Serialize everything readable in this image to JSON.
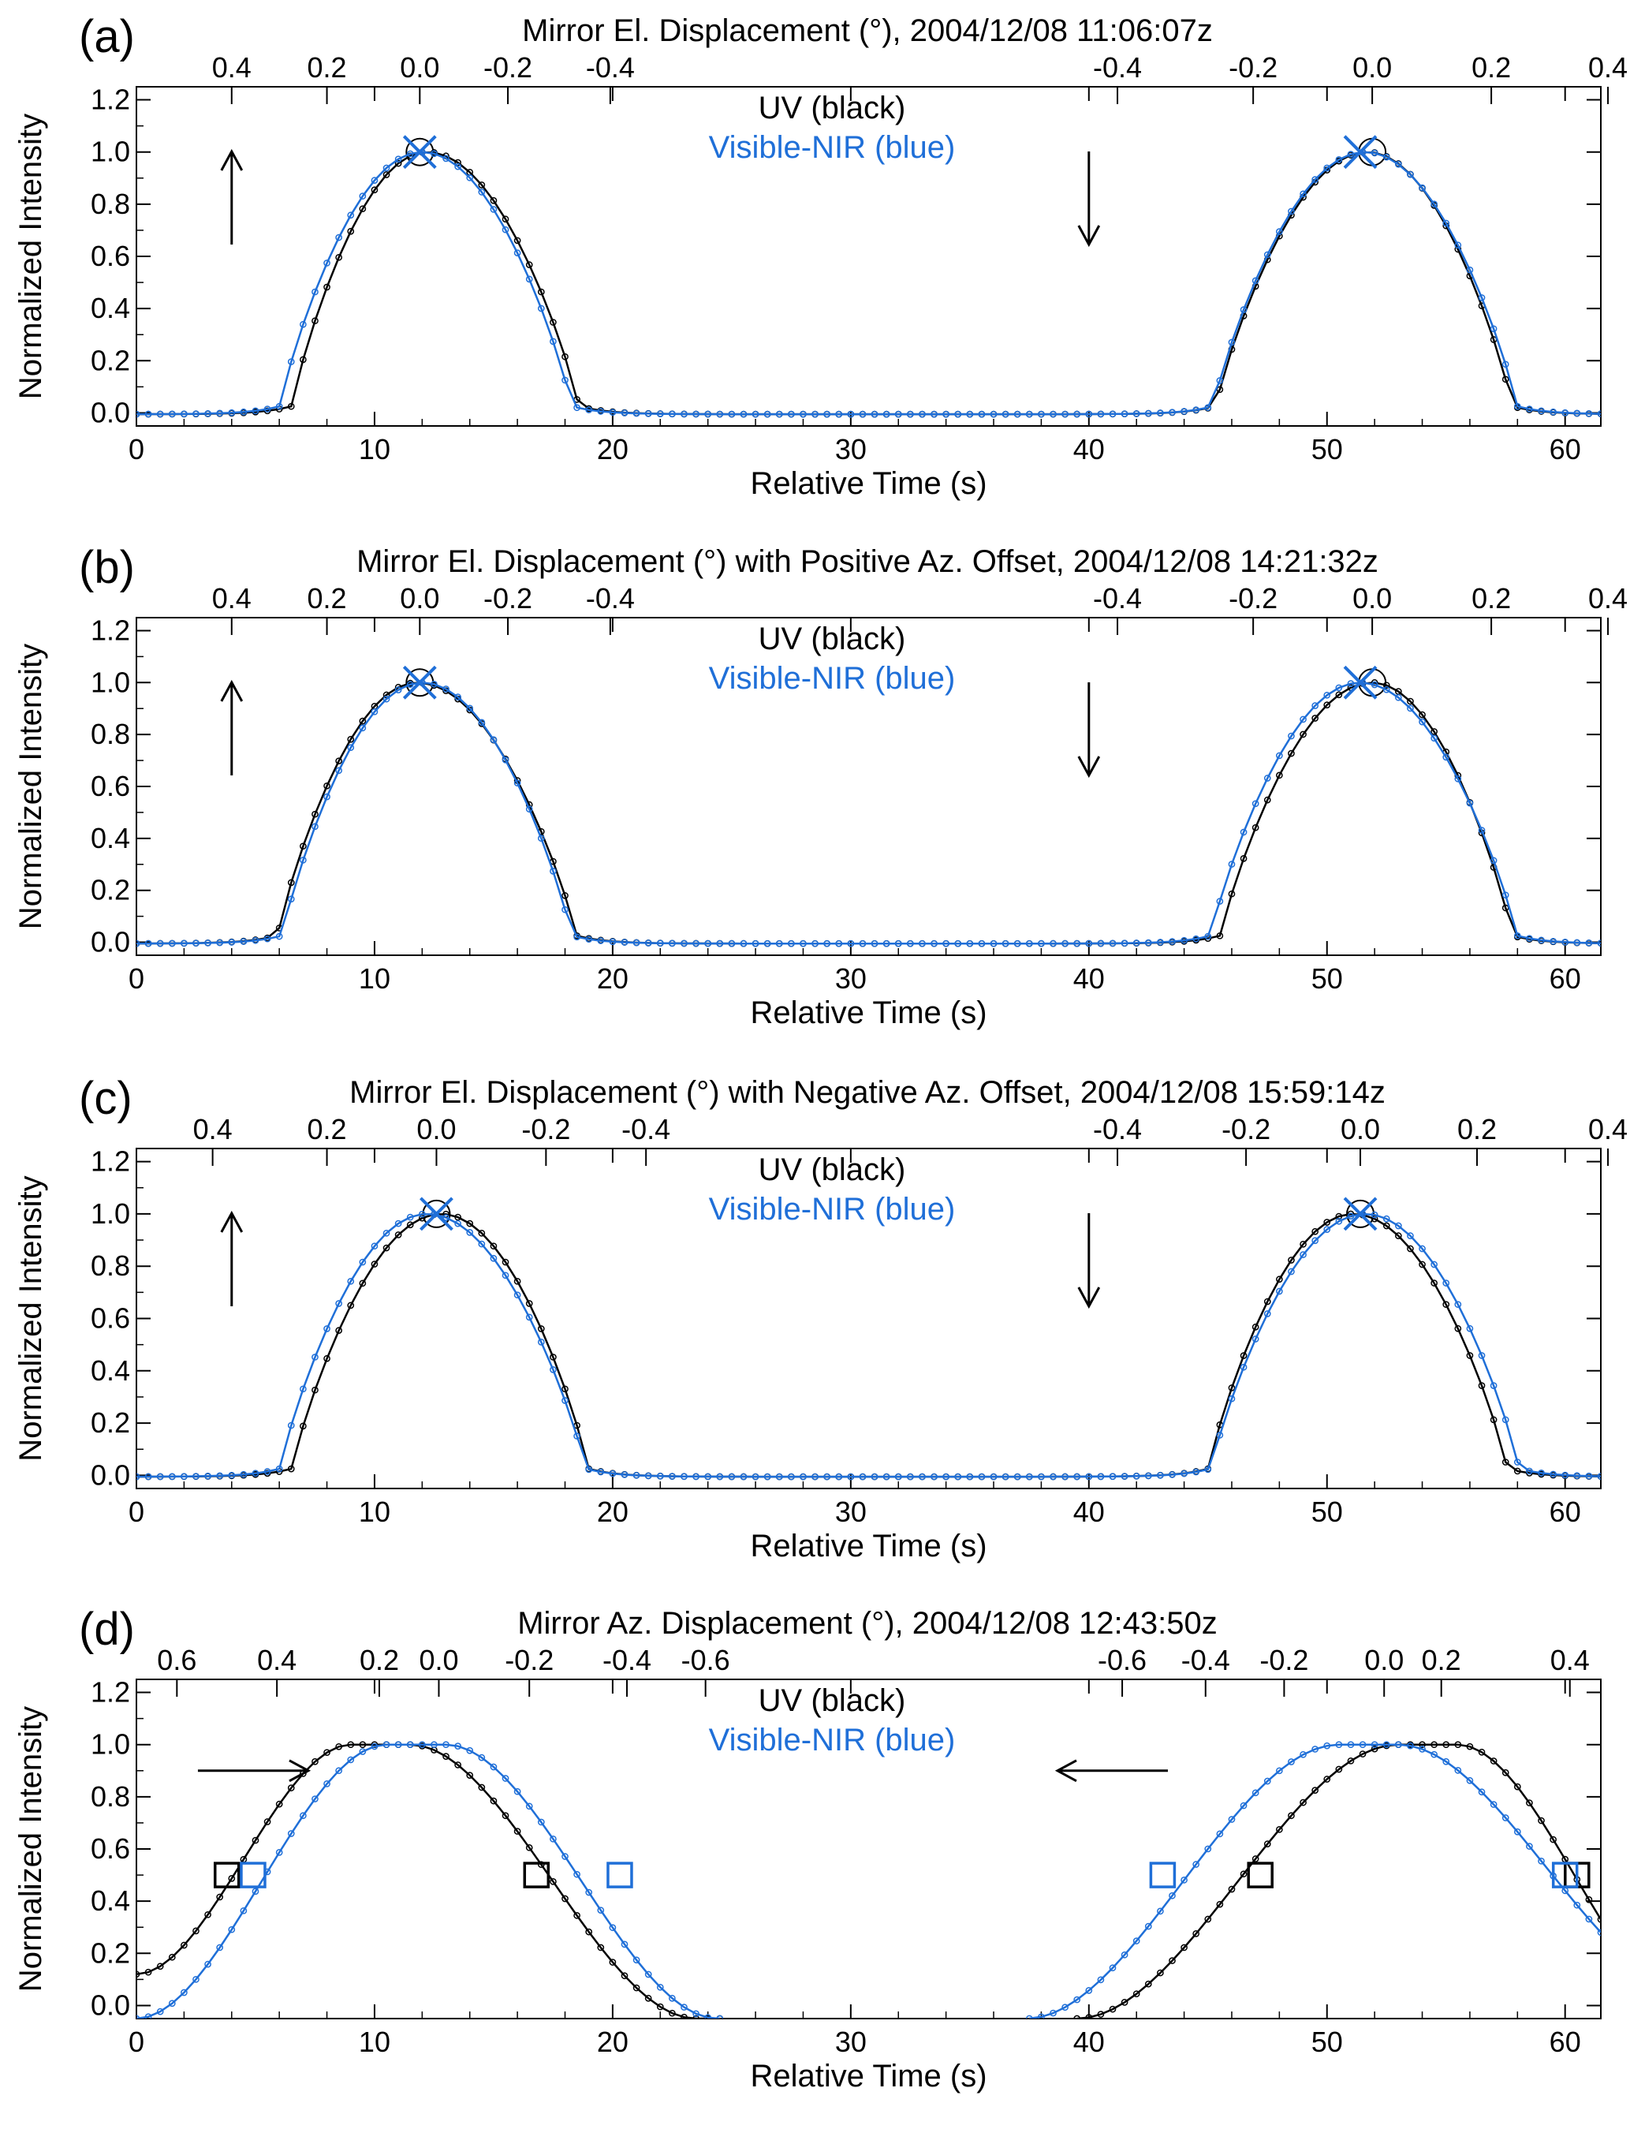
{
  "figure": {
    "background": "#ffffff",
    "uv_color": "#000000",
    "vis_color": "#1f6fd8"
  },
  "panels": [
    {
      "label": "(a)",
      "top_title": "Mirror El. Displacement (°), 2004/12/08 11:06:07z",
      "top_ticks_left": [
        "0.4",
        "0.2",
        "0.0",
        "-0.2",
        "-0.4"
      ],
      "top_ticks_right": [
        "-0.4",
        "-0.2",
        "0.0",
        "0.2",
        "0.4"
      ],
      "legend": [
        "UV (black)",
        "Visible-NIR (blue)"
      ],
      "ylabel": "Normalized Intensity",
      "xlabel": "Relative Time (s)",
      "arrows": [
        "up-arrow",
        "down-arrow"
      ]
    },
    {
      "label": "(b)",
      "top_title": "Mirror El. Displacement (°) with Positive Az. Offset, 2004/12/08 14:21:32z",
      "top_ticks_left": [
        "0.4",
        "0.2",
        "0.0",
        "-0.2",
        "-0.4"
      ],
      "top_ticks_right": [
        "-0.4",
        "-0.2",
        "0.0",
        "0.2",
        "0.4"
      ],
      "legend": [
        "UV (black)",
        "Visible-NIR (blue)"
      ],
      "ylabel": "Normalized Intensity",
      "xlabel": "Relative Time (s)",
      "arrows": [
        "up-arrow",
        "down-arrow"
      ]
    },
    {
      "label": "(c)",
      "top_title": "Mirror El. Displacement (°) with Negative Az. Offset, 2004/12/08 15:59:14z",
      "top_ticks_left": [
        "0.4",
        "0.2",
        "0.0",
        "-0.2",
        "-0.4"
      ],
      "top_ticks_right": [
        "-0.4",
        "-0.2",
        "0.0",
        "0.2",
        "0.4"
      ],
      "legend": [
        "UV (black)",
        "Visible-NIR (blue)"
      ],
      "ylabel": "Normalized Intensity",
      "xlabel": "Relative Time (s)",
      "arrows": [
        "up-arrow",
        "down-arrow"
      ]
    },
    {
      "label": "(d)",
      "top_title": "Mirror Az. Displacement (°), 2004/12/08 12:43:50z",
      "top_ticks_left": [
        "0.6",
        "0.4",
        "0.2",
        "0.0",
        "-0.2",
        "-0.4",
        "-0.6"
      ],
      "top_ticks_right": [
        "-0.6",
        "-0.4",
        "-0.2",
        "0.0",
        "0.2",
        "0.4"
      ],
      "legend": [
        "UV (black)",
        "Visible-NIR (blue)"
      ],
      "ylabel": "Normalized Intensity",
      "xlabel": "Relative Time (s)",
      "arrows": [
        "right-arrow",
        "left-arrow"
      ]
    }
  ],
  "chart_data": [
    {
      "type": "line",
      "panel": "(a)",
      "xlabel": "Relative Time (s)",
      "ylabel": "Normalized Intensity",
      "xlim": [
        0,
        61.5
      ],
      "ylim": [
        -0.05,
        1.25
      ],
      "xticks": [
        0,
        10,
        20,
        30,
        40,
        50,
        60
      ],
      "yticks": [
        0.0,
        0.2,
        0.4,
        0.6,
        0.8,
        1.0,
        1.2
      ],
      "top_axis_ticks_deg": [
        {
          "label": "0.4",
          "t": 4.0
        },
        {
          "label": "0.2",
          "t": 8.0
        },
        {
          "label": "0.0",
          "t": 11.9
        },
        {
          "label": "-0.2",
          "t": 15.6
        },
        {
          "label": "-0.4",
          "t": 19.9
        },
        {
          "label": "-0.4",
          "t": 41.2
        },
        {
          "label": "-0.2",
          "t": 46.9
        },
        {
          "label": "0.0",
          "t": 51.9
        },
        {
          "label": "0.2",
          "t": 56.9
        },
        {
          "label": "0.4",
          "t": 61.8
        }
      ],
      "series": [
        {
          "name": "UV (black)",
          "peaks": [
            {
              "t0": 6.5,
              "t1": 18.6,
              "peak": 12.2
            },
            {
              "t0": 45.3,
              "t1": 57.8,
              "peak": 51.7
            }
          ],
          "peak_markers": [
            {
              "x": 11.9,
              "y": 1.0,
              "symbol": "circle"
            },
            {
              "x": 51.9,
              "y": 1.0,
              "symbol": "circle"
            }
          ]
        },
        {
          "name": "Visible-NIR (blue)",
          "peaks": [
            {
              "t0": 6.0,
              "t1": 18.3,
              "peak": 12.0
            },
            {
              "t0": 45.2,
              "t1": 58.0,
              "peak": 51.6
            }
          ],
          "peak_markers": [
            {
              "x": 11.9,
              "y": 1.0,
              "symbol": "x"
            },
            {
              "x": 51.4,
              "y": 1.0,
              "symbol": "x"
            }
          ]
        }
      ],
      "annotations": [
        {
          "text": "up-arrow",
          "x": 4.0
        },
        {
          "text": "down-arrow",
          "x": 40.0
        }
      ],
      "legend_position": "top-center"
    },
    {
      "type": "line",
      "panel": "(b)",
      "xlabel": "Relative Time (s)",
      "ylabel": "Normalized Intensity",
      "xlim": [
        0,
        61.5
      ],
      "ylim": [
        -0.05,
        1.25
      ],
      "xticks": [
        0,
        10,
        20,
        30,
        40,
        50,
        60
      ],
      "yticks": [
        0.0,
        0.2,
        0.4,
        0.6,
        0.8,
        1.0,
        1.2
      ],
      "top_axis_ticks_deg": [
        {
          "label": "0.4",
          "t": 4.0
        },
        {
          "label": "0.2",
          "t": 8.0
        },
        {
          "label": "0.0",
          "t": 11.9
        },
        {
          "label": "-0.2",
          "t": 15.6
        },
        {
          "label": "-0.4",
          "t": 19.9
        },
        {
          "label": "-0.4",
          "t": 41.2
        },
        {
          "label": "-0.2",
          "t": 46.9
        },
        {
          "label": "0.0",
          "t": 51.9
        },
        {
          "label": "0.2",
          "t": 56.9
        },
        {
          "label": "0.4",
          "t": 61.8
        }
      ],
      "series": [
        {
          "name": "UV (black)",
          "peaks": [
            {
              "t0": 5.9,
              "t1": 18.5,
              "peak": 11.8
            },
            {
              "t0": 45.5,
              "t1": 57.8,
              "peak": 51.9
            }
          ],
          "peak_markers": [
            {
              "x": 11.9,
              "y": 1.0,
              "symbol": "circle"
            },
            {
              "x": 51.9,
              "y": 1.0,
              "symbol": "circle"
            }
          ]
        },
        {
          "name": "Visible-NIR (blue)",
          "peaks": [
            {
              "t0": 6.1,
              "t1": 18.3,
              "peak": 12.0
            },
            {
              "t0": 45.1,
              "t1": 58.0,
              "peak": 51.4
            }
          ],
          "peak_markers": [
            {
              "x": 11.9,
              "y": 1.0,
              "symbol": "x"
            },
            {
              "x": 51.4,
              "y": 1.0,
              "symbol": "x"
            }
          ]
        }
      ],
      "annotations": [
        {
          "text": "up-arrow",
          "x": 4.0
        },
        {
          "text": "down-arrow",
          "x": 40.0
        }
      ],
      "legend_position": "top-center"
    },
    {
      "type": "line",
      "panel": "(c)",
      "xlabel": "Relative Time (s)",
      "ylabel": "Normalized Intensity",
      "xlim": [
        0,
        61.5
      ],
      "ylim": [
        -0.05,
        1.25
      ],
      "xticks": [
        0,
        10,
        20,
        30,
        40,
        50,
        60
      ],
      "yticks": [
        0.0,
        0.2,
        0.4,
        0.6,
        0.8,
        1.0,
        1.2
      ],
      "top_axis_ticks_deg": [
        {
          "label": "0.4",
          "t": 3.2
        },
        {
          "label": "0.2",
          "t": 8.0
        },
        {
          "label": "0.0",
          "t": 12.6
        },
        {
          "label": "-0.2",
          "t": 17.2
        },
        {
          "label": "-0.4",
          "t": 21.4
        },
        {
          "label": "-0.4",
          "t": 41.2
        },
        {
          "label": "-0.2",
          "t": 46.6
        },
        {
          "label": "0.0",
          "t": 51.4
        },
        {
          "label": "0.2",
          "t": 56.3
        },
        {
          "label": "0.4",
          "t": 61.8
        }
      ],
      "series": [
        {
          "name": "UV (black)",
          "peaks": [
            {
              "t0": 6.5,
              "t1": 19.0,
              "peak": 12.8
            },
            {
              "t0": 45.0,
              "t1": 57.6,
              "peak": 51.1
            }
          ],
          "peak_markers": [
            {
              "x": 12.6,
              "y": 1.0,
              "symbol": "circle"
            },
            {
              "x": 51.4,
              "y": 1.0,
              "symbol": "circle"
            }
          ]
        },
        {
          "name": "Visible-NIR (blue)",
          "peaks": [
            {
              "t0": 6.0,
              "t1": 18.9,
              "peak": 12.2
            },
            {
              "t0": 45.1,
              "t1": 58.1,
              "peak": 51.6
            }
          ],
          "peak_markers": [
            {
              "x": 12.6,
              "y": 1.0,
              "symbol": "x"
            },
            {
              "x": 51.4,
              "y": 1.0,
              "symbol": "x"
            }
          ]
        }
      ],
      "annotations": [
        {
          "text": "up-arrow",
          "x": 4.0
        },
        {
          "text": "down-arrow",
          "x": 40.0
        }
      ],
      "legend_position": "top-center"
    },
    {
      "type": "line",
      "panel": "(d)",
      "xlabel": "Relative Time (s)",
      "ylabel": "Normalized Intensity",
      "xlim": [
        0,
        61.5
      ],
      "ylim": [
        -0.05,
        1.25
      ],
      "xticks": [
        0,
        10,
        20,
        30,
        40,
        50,
        60
      ],
      "yticks": [
        0.0,
        0.2,
        0.4,
        0.6,
        0.8,
        1.0,
        1.2
      ],
      "top_axis_ticks_deg": [
        {
          "label": "0.6",
          "t": 1.7
        },
        {
          "label": "0.4",
          "t": 5.9
        },
        {
          "label": "0.2",
          "t": 10.2
        },
        {
          "label": "0.0",
          "t": 12.7
        },
        {
          "label": "-0.2",
          "t": 16.5
        },
        {
          "label": "-0.4",
          "t": 20.6
        },
        {
          "label": "-0.6",
          "t": 23.9
        },
        {
          "label": "-0.6",
          "t": 41.4
        },
        {
          "label": "-0.4",
          "t": 44.9
        },
        {
          "label": "-0.2",
          "t": 48.2
        },
        {
          "label": "0.0",
          "t": 52.4
        },
        {
          "label": "0.2",
          "t": 54.8
        },
        {
          "label": "0.4",
          "t": 60.2
        }
      ],
      "series": [
        {
          "name": "UV (black)",
          "curves": [
            {
              "kind": "rise-plateau-fall",
              "y_start": 0.12,
              "plateau": [
                9.0,
                11.5
              ],
              "end": 23.5
            },
            {
              "kind": "rise-plateau-fall",
              "start": 39.5,
              "plateau": [
                53.0,
                55.5
              ],
              "y_end": 0.33
            }
          ],
          "half_max_markers": [
            {
              "x": 3.8,
              "y": 0.5
            },
            {
              "x": 16.8,
              "y": 0.5
            },
            {
              "x": 47.2,
              "y": 0.5
            },
            {
              "x": 60.5,
              "y": 0.5
            }
          ]
        },
        {
          "name": "Visible-NIR (blue)",
          "curves": [
            {
              "kind": "rise-plateau-fall",
              "y_start": -0.05,
              "plateau": [
                10.5,
                13.0
              ],
              "end": 24.4
            },
            {
              "kind": "rise-plateau-fall",
              "start": 37.4,
              "plateau": [
                50.5,
                53.0
              ],
              "y_end": 0.28
            }
          ],
          "half_max_markers": [
            {
              "x": 4.9,
              "y": 0.5
            },
            {
              "x": 20.3,
              "y": 0.5
            },
            {
              "x": 43.1,
              "y": 0.5
            },
            {
              "x": 60.0,
              "y": 0.5
            }
          ]
        }
      ],
      "annotations": [
        {
          "text": "right-arrow",
          "x": 4.9
        },
        {
          "text": "left-arrow",
          "x": 41.0
        }
      ],
      "legend_position": "top-center"
    }
  ]
}
